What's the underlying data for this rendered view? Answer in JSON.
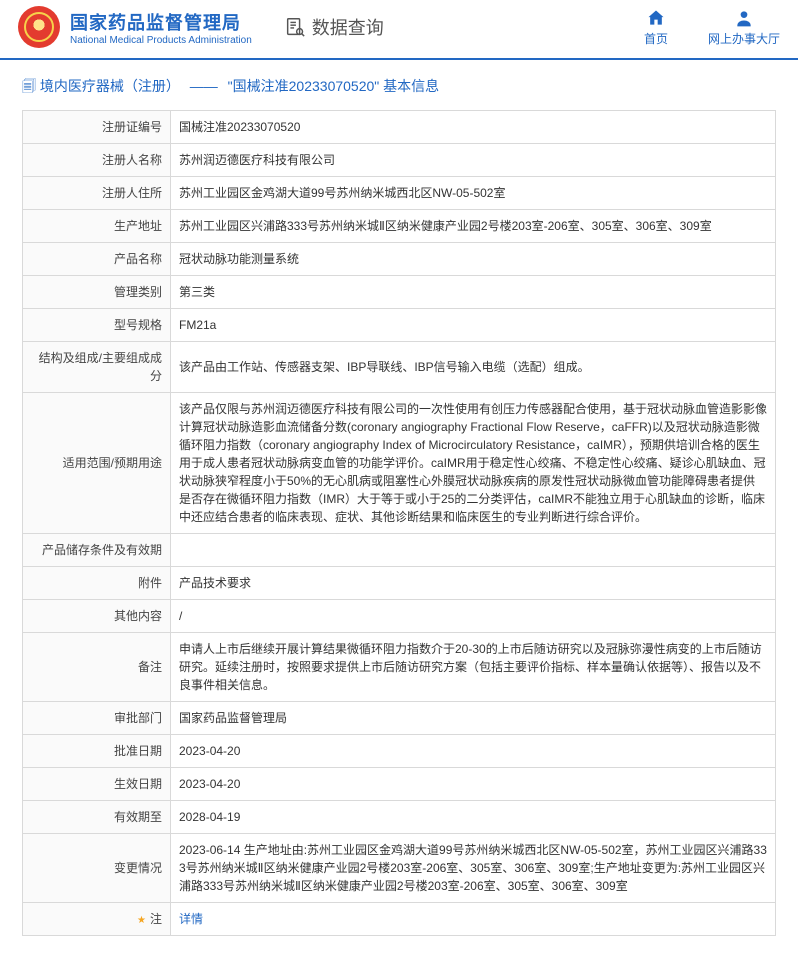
{
  "header": {
    "org_cn": "国家药品监督管理局",
    "org_en": "National Medical Products Administration",
    "page_title": "数据查询",
    "nav_home": "首页",
    "nav_service": "网上办事大厅"
  },
  "breadcrumb": {
    "icon": "🗐",
    "level1": "境内医疗器械（注册）",
    "level2": "\"国械注准20233070520\"  基本信息"
  },
  "rows": [
    {
      "label": "注册证编号",
      "value": "国械注准20233070520"
    },
    {
      "label": "注册人名称",
      "value": "苏州润迈德医疗科技有限公司"
    },
    {
      "label": "注册人住所",
      "value": "苏州工业园区金鸡湖大道99号苏州纳米城西北区NW-05-502室"
    },
    {
      "label": "生产地址",
      "value": "苏州工业园区兴浦路333号苏州纳米城Ⅱ区纳米健康产业园2号楼203室-206室、305室、306室、309室"
    },
    {
      "label": "产品名称",
      "value": "冠状动脉功能测量系统"
    },
    {
      "label": "管理类别",
      "value": "第三类"
    },
    {
      "label": "型号规格",
      "value": "FM21a"
    },
    {
      "label": "结构及组成/主要组成成分",
      "value": "该产品由工作站、传感器支架、IBP导联线、IBP信号输入电缆（选配）组成。"
    },
    {
      "label": "适用范围/预期用途",
      "value": "该产品仅限与苏州润迈德医疗科技有限公司的一次性使用有创压力传感器配合使用，基于冠状动脉血管造影影像计算冠状动脉造影血流储备分数(coronary angiography Fractional Flow Reserve，caFFR)以及冠状动脉造影微循环阻力指数（coronary angiography Index of Microcirculatory Resistance，caIMR），预期供培训合格的医生用于成人患者冠状动脉病变血管的功能学评价。caIMR用于稳定性心绞痛、不稳定性心绞痛、疑诊心肌缺血、冠状动脉狭窄程度小于50%的无心肌病或阻塞性心外膜冠状动脉疾病的原发性冠状动脉微血管功能障碍患者提供是否存在微循环阻力指数（IMR）大于等于或小于25的二分类评估，caIMR不能独立用于心肌缺血的诊断，临床中还应结合患者的临床表现、症状、其他诊断结果和临床医生的专业判断进行综合评价。"
    },
    {
      "label": "产品储存条件及有效期",
      "value": ""
    },
    {
      "label": "附件",
      "value": "产品技术要求"
    },
    {
      "label": "其他内容",
      "value": "/"
    },
    {
      "label": "备注",
      "value": "申请人上市后继续开展计算结果微循环阻力指数介于20-30的上市后随访研究以及冠脉弥漫性病变的上市后随访研究。延续注册时，按照要求提供上市后随访研究方案（包括主要评价指标、样本量确认依据等）、报告以及不良事件相关信息。"
    },
    {
      "label": "审批部门",
      "value": "国家药品监督管理局"
    },
    {
      "label": "批准日期",
      "value": "2023-04-20"
    },
    {
      "label": "生效日期",
      "value": "2023-04-20"
    },
    {
      "label": "有效期至",
      "value": "2028-04-19"
    },
    {
      "label": "变更情况",
      "value": "2023-06-14 生产地址由:苏州工业园区金鸡湖大道99号苏州纳米城西北区NW-05-502室，苏州工业园区兴浦路333号苏州纳米城Ⅱ区纳米健康产业园2号楼203室-206室、305室、306室、309室;生产地址变更为:苏州工业园区兴浦路333号苏州纳米城Ⅱ区纳米健康产业园2号楼203室-206室、305室、306室、309室"
    }
  ],
  "note": {
    "label": "注",
    "value": "详情"
  }
}
